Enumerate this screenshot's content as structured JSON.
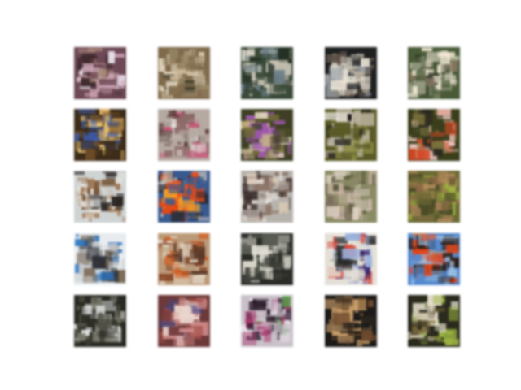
{
  "figure": {
    "rows": 5,
    "cols": 5,
    "description": "",
    "tiles": [
      {
        "name": "sample-r1-c1",
        "palette": [
          "#6b4a55",
          "#c9a6b4",
          "#e7e0ea",
          "#3d2a2e",
          "#a88a7c"
        ]
      },
      {
        "name": "sample-r1-c2",
        "palette": [
          "#7d6a4f",
          "#c9b79b",
          "#3b3a2a",
          "#9a8a6c",
          "#e0d4bf"
        ]
      },
      {
        "name": "sample-r1-c3",
        "palette": [
          "#3c4a3a",
          "#c8c3b5",
          "#1f2a20",
          "#6b7e86",
          "#efe9dc"
        ]
      },
      {
        "name": "sample-r1-c4",
        "palette": [
          "#1e1f20",
          "#c8c0b2",
          "#5a5048",
          "#8d96a0",
          "#e8e2d6"
        ]
      },
      {
        "name": "sample-r1-c5",
        "palette": [
          "#4a5a3a",
          "#d9d3c3",
          "#2e3526",
          "#8c7a68",
          "#eee6d6"
        ]
      },
      {
        "name": "sample-r2-c1",
        "palette": [
          "#3b2c1a",
          "#d7b06b",
          "#6a4a2a",
          "#3f62b8",
          "#e8c77a"
        ]
      },
      {
        "name": "sample-r2-c2",
        "palette": [
          "#b4a9a3",
          "#4a2e2b",
          "#e8e6e2",
          "#8a6b68",
          "#c25a7a"
        ]
      },
      {
        "name": "sample-r2-c3",
        "palette": [
          "#3e3f26",
          "#c4b28a",
          "#6f6a3c",
          "#9a5aa8",
          "#efe6cf"
        ]
      },
      {
        "name": "sample-r2-c4",
        "palette": [
          "#5a5a2c",
          "#e6e1d7",
          "#1e1c18",
          "#8a8a48",
          "#b9b1a0"
        ]
      },
      {
        "name": "sample-r2-c5",
        "palette": [
          "#3a3e1e",
          "#c94a2a",
          "#e9c6c0",
          "#7a7242",
          "#2a2622"
        ]
      },
      {
        "name": "sample-r3-c1",
        "palette": [
          "#cfd3d3",
          "#2b2623",
          "#7b5a3f",
          "#e8e6df",
          "#a07a5a"
        ]
      },
      {
        "name": "sample-r3-c2",
        "palette": [
          "#3c5a8a",
          "#d94a1e",
          "#f0a030",
          "#d9d1c4",
          "#2a2a30"
        ]
      },
      {
        "name": "sample-r3-c3",
        "palette": [
          "#b6b2ad",
          "#3a2e2c",
          "#e9e4de",
          "#8a7468",
          "#d9c8b6"
        ]
      },
      {
        "name": "sample-r3-c4",
        "palette": [
          "#8a8a68",
          "#c9b6a8",
          "#5a5a3e",
          "#dcd2c5",
          "#7a6a60"
        ]
      },
      {
        "name": "sample-r3-c5",
        "palette": [
          "#6c6a3a",
          "#b08a60",
          "#4a4a2a",
          "#9fb04a",
          "#8a6a4a"
        ]
      },
      {
        "name": "sample-r4-c1",
        "palette": [
          "#e8ecef",
          "#2a2d33",
          "#2f72b8",
          "#7a6a58",
          "#c2c6c9"
        ]
      },
      {
        "name": "sample-r4-c2",
        "palette": [
          "#b89a7c",
          "#e4d8c8",
          "#7a3a1e",
          "#c9581e",
          "#5a3a2a"
        ]
      },
      {
        "name": "sample-r4-c3",
        "palette": [
          "#2b2c28",
          "#d7d4c9",
          "#8a8c84",
          "#565a52",
          "#efece3"
        ]
      },
      {
        "name": "sample-r4-c4",
        "palette": [
          "#e4e0d8",
          "#3a2a6a",
          "#d04a3a",
          "#2a2a2a",
          "#9ab0d8"
        ]
      },
      {
        "name": "sample-r4-c5",
        "palette": [
          "#5a8ac8",
          "#d8481e",
          "#2c1c14",
          "#9fc0e0",
          "#e07a2a"
        ]
      },
      {
        "name": "sample-r5-c1",
        "palette": [
          "#2a2a24",
          "#cfd2cf",
          "#7a7a6e",
          "#eef0ee",
          "#4a4a40"
        ]
      },
      {
        "name": "sample-r5-c2",
        "palette": [
          "#6a3a3a",
          "#c88a8a",
          "#e8d4cc",
          "#3a4a8a",
          "#a0504a"
        ]
      },
      {
        "name": "sample-r5-c3",
        "palette": [
          "#c8c0c8",
          "#2a1a2a",
          "#5aa04a",
          "#a03a6a",
          "#e8e0e8"
        ]
      },
      {
        "name": "sample-r5-c4",
        "palette": [
          "#1c1a18",
          "#6a4a30",
          "#c8a070",
          "#3a2a1e",
          "#8a7050"
        ]
      },
      {
        "name": "sample-r5-c5",
        "palette": [
          "#2a2a1e",
          "#e6e0d0",
          "#7a6a40",
          "#9ab04a",
          "#c8c0a8"
        ]
      }
    ]
  }
}
